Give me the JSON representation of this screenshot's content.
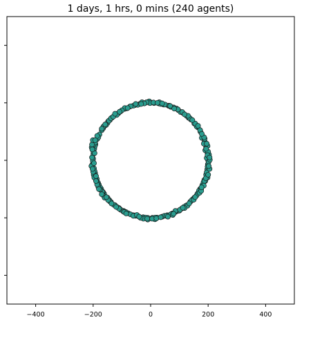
{
  "chart_data": {
    "type": "scatter",
    "title": "1 days, 1 hrs, 0 mins (240 agents)",
    "xlabel": "",
    "ylabel": "",
    "xlim": [
      -500,
      500
    ],
    "ylim": [
      -500,
      500
    ],
    "xticks": [
      -400,
      -200,
      0,
      200,
      400
    ],
    "xtick_labels": [
      "−400",
      "−200",
      "0",
      "200",
      "400"
    ],
    "yticks": [
      -400,
      -200,
      0,
      200,
      400
    ],
    "ytick_labels": [
      "",
      "",
      "",
      "",
      ""
    ],
    "grid": false,
    "legend": "none",
    "series": [
      {
        "marker_color": "#2a9d8f",
        "edge_color": "#1a1a1a",
        "points": [
          [
            200,
            0
          ],
          [
            199,
            15
          ],
          [
            197,
            28
          ],
          [
            193,
            45
          ],
          [
            188,
            65
          ],
          [
            182,
            82
          ],
          [
            173,
            100
          ],
          [
            164,
            115
          ],
          [
            152,
            128
          ],
          [
            140,
            142
          ],
          [
            125,
            155
          ],
          [
            112,
            165
          ],
          [
            96,
            175
          ],
          [
            80,
            184
          ],
          [
            62,
            190
          ],
          [
            45,
            194
          ],
          [
            28,
            198
          ],
          [
            12,
            199
          ],
          [
            -4,
            200
          ],
          [
            -20,
            199
          ],
          [
            -38,
            196
          ],
          [
            -55,
            192
          ],
          [
            -72,
            187
          ],
          [
            -90,
            179
          ],
          [
            -105,
            170
          ],
          [
            -120,
            160
          ],
          [
            -135,
            148
          ],
          [
            -148,
            135
          ],
          [
            -160,
            120
          ],
          [
            -170,
            105
          ],
          [
            -178,
            90
          ],
          [
            -186,
            74
          ],
          [
            -192,
            56
          ],
          [
            -196,
            40
          ],
          [
            -199,
            22
          ],
          [
            -200,
            6
          ],
          [
            -199,
            -10
          ],
          [
            -197,
            -28
          ],
          [
            -193,
            -45
          ],
          [
            -187,
            -65
          ],
          [
            -180,
            -85
          ],
          [
            -172,
            -100
          ],
          [
            -162,
            -116
          ],
          [
            -150,
            -130
          ],
          [
            -138,
            -145
          ],
          [
            -124,
            -156
          ],
          [
            -110,
            -166
          ],
          [
            -94,
            -176
          ],
          [
            -78,
            -184
          ],
          [
            -60,
            -191
          ],
          [
            -42,
            -195
          ],
          [
            -26,
            -198
          ],
          [
            -10,
            -200
          ],
          [
            6,
            -200
          ],
          [
            22,
            -199
          ],
          [
            40,
            -196
          ],
          [
            58,
            -191
          ],
          [
            75,
            -185
          ],
          [
            92,
            -177
          ],
          [
            108,
            -168
          ],
          [
            124,
            -157
          ],
          [
            138,
            -144
          ],
          [
            152,
            -130
          ],
          [
            163,
            -116
          ],
          [
            172,
            -100
          ],
          [
            180,
            -86
          ],
          [
            187,
            -68
          ],
          [
            193,
            -50
          ],
          [
            197,
            -32
          ],
          [
            199,
            -14
          ],
          [
            195,
            8
          ],
          [
            190,
            35
          ],
          [
            185,
            58
          ],
          [
            178,
            78
          ],
          [
            160,
            118
          ],
          [
            132,
            148
          ],
          [
            104,
            168
          ],
          [
            70,
            186
          ],
          [
            35,
            196
          ],
          [
            0,
            201
          ],
          [
            -45,
            193
          ],
          [
            -82,
            181
          ],
          [
            -112,
            164
          ],
          [
            -142,
            140
          ],
          [
            -165,
            112
          ],
          [
            -182,
            80
          ],
          [
            -194,
            50
          ],
          [
            -201,
            -2
          ],
          [
            -195,
            -38
          ],
          [
            -183,
            -78
          ],
          [
            -166,
            -110
          ],
          [
            -144,
            -138
          ],
          [
            -116,
            -163
          ],
          [
            -86,
            -180
          ],
          [
            -52,
            -193
          ],
          [
            -18,
            -199
          ],
          [
            16,
            -199
          ],
          [
            48,
            -193
          ],
          [
            84,
            -181
          ],
          [
            116,
            -162
          ],
          [
            146,
            -136
          ],
          [
            168,
            -106
          ],
          [
            184,
            -76
          ],
          [
            195,
            -42
          ],
          [
            202,
            -5
          ],
          [
            203,
            20
          ],
          [
            198,
            -22
          ],
          [
            206,
            2
          ],
          [
            -204,
            10
          ],
          [
            -203,
            -15
          ],
          [
            -199,
            30
          ],
          [
            -198,
            -50
          ],
          [
            -206,
            -20
          ],
          [
            -5,
            205
          ],
          [
            -10,
            -206
          ],
          [
            15,
            -205
          ],
          [
            -25,
            -203
          ],
          [
            30,
            202
          ],
          [
            -30,
            202
          ],
          [
            198,
            -60
          ],
          [
            190,
            -72
          ],
          [
            176,
            -98
          ],
          [
            -190,
            -70
          ],
          [
            -186,
            -80
          ],
          [
            -175,
            -95
          ],
          [
            -150,
            130
          ],
          [
            -145,
            138
          ],
          [
            -138,
            146
          ],
          [
            -155,
            123
          ],
          [
            -162,
            -125
          ],
          [
            -168,
            -110
          ],
          [
            128,
            -158
          ],
          [
            118,
            -166
          ],
          [
            100,
            -175
          ],
          [
            90,
            180
          ],
          [
            95,
            177
          ],
          [
            110,
            168
          ],
          [
            -104,
            -172
          ],
          [
            -95,
            -178
          ],
          [
            160,
            -122
          ],
          [
            -118,
            158
          ],
          [
            50,
            194
          ],
          [
            65,
            190
          ],
          [
            -60,
            190
          ],
          [
            -70,
            -188
          ],
          [
            155,
            128
          ],
          [
            -176,
            -102
          ],
          [
            -196,
            -60
          ],
          [
            187,
            -72
          ],
          [
            -164,
            118
          ],
          [
            185,
            -88
          ],
          [
            172,
            105
          ],
          [
            -170,
            110
          ],
          [
            -200,
            -40
          ],
          [
            200,
            30
          ],
          [
            198,
            50
          ],
          [
            -200,
            52
          ],
          [
            -205,
            45
          ],
          [
            205,
            -30
          ],
          [
            -60,
            -193
          ],
          [
            -48,
            -190
          ],
          [
            70,
            -188
          ],
          [
            55,
            -193
          ],
          [
            86,
            -176
          ],
          [
            -130,
            152
          ],
          [
            -128,
            -155
          ],
          [
            136,
            147
          ],
          [
            142,
            -140
          ],
          [
            -142,
            -143
          ],
          [
            -186,
            85
          ],
          [
            -193,
            62
          ],
          [
            195,
            58
          ],
          [
            192,
            -62
          ],
          [
            188,
            75
          ],
          [
            -12,
            -203
          ],
          [
            -35,
            -200
          ],
          [
            5,
            -203
          ],
          [
            20,
            -202
          ],
          [
            -2,
            199
          ],
          [
            -14,
            202
          ],
          [
            -22,
            198
          ],
          [
            10,
            201
          ],
          [
            24,
            200
          ],
          [
            40,
            198
          ],
          [
            -52,
            196
          ],
          [
            -90,
            182
          ],
          [
            -100,
            174
          ],
          [
            60,
            -196
          ],
          [
            77,
            -190
          ],
          [
            150,
            -137
          ],
          [
            -160,
            -130
          ],
          [
            -182,
            -92
          ],
          [
            -186,
            -84
          ],
          [
            170,
            -113
          ],
          [
            176,
            -106
          ],
          [
            177,
            -94
          ],
          [
            -108,
            169
          ],
          [
            -124,
            162
          ],
          [
            130,
            155
          ],
          [
            145,
            140
          ],
          [
            -195,
            25
          ],
          [
            -203,
            38
          ],
          [
            -190,
            -55
          ],
          [
            200,
            -50
          ],
          [
            -92,
            -180
          ],
          [
            -110,
            -168
          ],
          [
            -120,
            -162
          ],
          [
            -136,
            -150
          ],
          [
            186,
            80
          ],
          [
            202,
            -20
          ],
          [
            -202,
            -30
          ],
          [
            -204,
            55
          ],
          [
            -201,
            70
          ],
          [
            198,
            18
          ],
          [
            205,
            10
          ],
          [
            165,
            120
          ],
          [
            -170,
            -118
          ],
          [
            -180,
            -100
          ],
          [
            178,
            92
          ],
          [
            118,
            160
          ],
          [
            -70,
            188
          ],
          [
            -80,
            182
          ],
          [
            35,
            -198
          ],
          [
            -40,
            -196
          ],
          [
            102,
            -172
          ],
          [
            112,
            -165
          ],
          [
            134,
            -150
          ],
          [
            -148,
            -138
          ],
          [
            -154,
            -128
          ],
          [
            155,
            -128
          ],
          [
            80,
            -186
          ],
          [
            -85,
            -185
          ],
          [
            68,
            189
          ],
          [
            -33,
            196
          ],
          [
            82,
            180
          ],
          [
            -158,
            125
          ],
          [
            -190,
            -72
          ],
          [
            -193,
            70
          ],
          [
            193,
            40
          ],
          [
            -197,
            -10
          ]
        ]
      }
    ]
  }
}
